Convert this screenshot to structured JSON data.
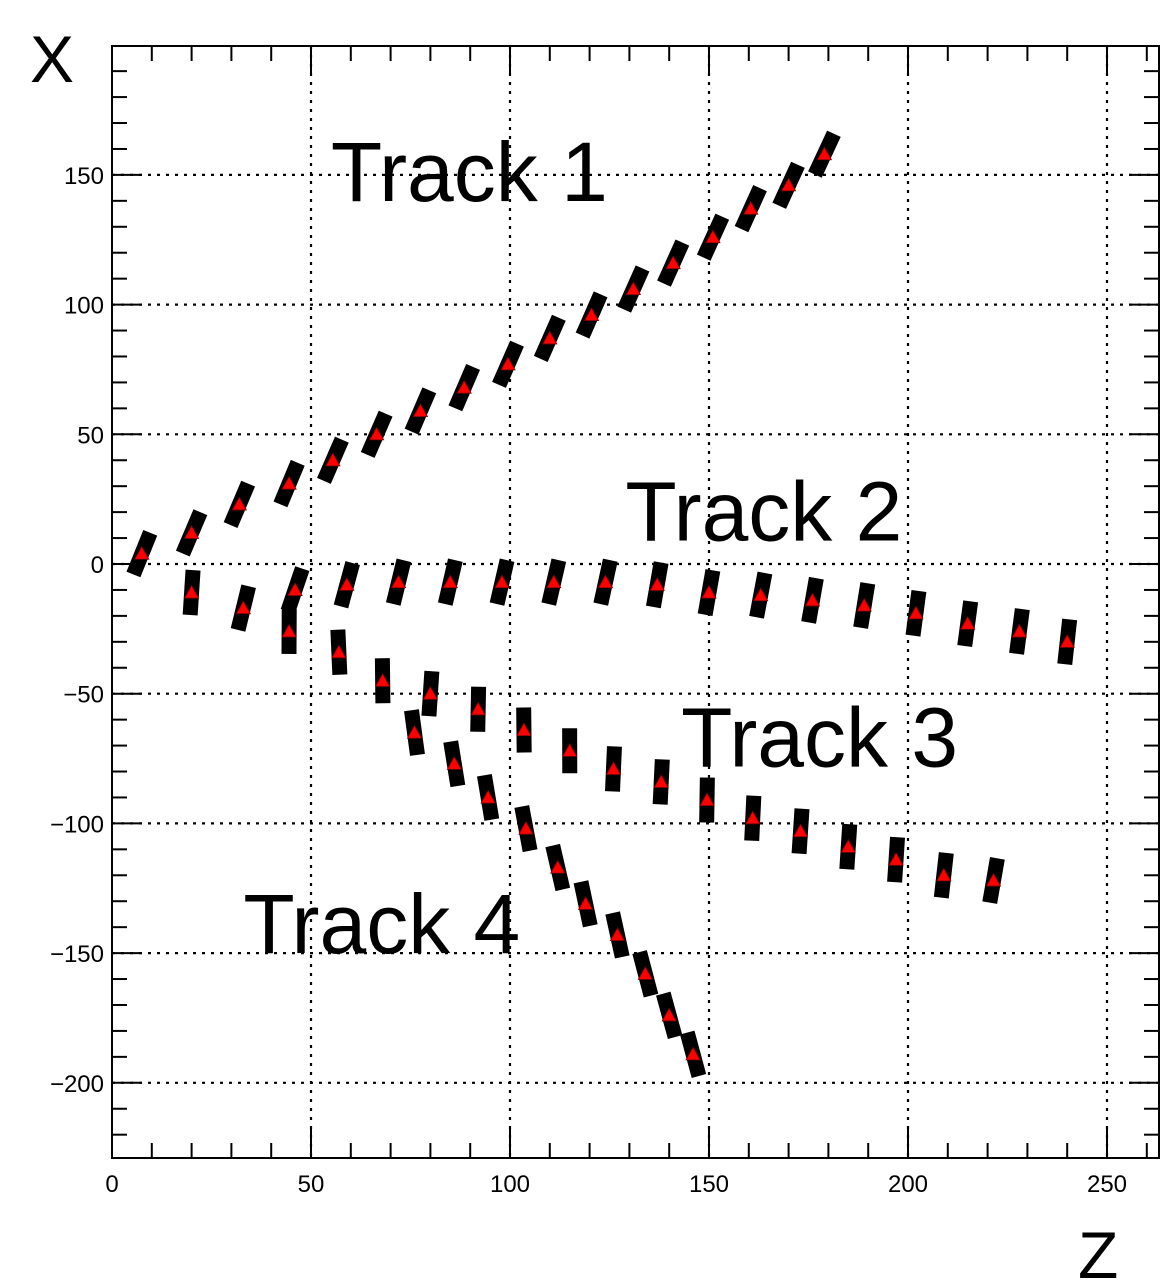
{
  "chart_data": {
    "type": "scatter",
    "xlabel": "Z",
    "ylabel": "X",
    "xlim": [
      0,
      263
    ],
    "ylim": [
      -228,
      198
    ],
    "grid": true,
    "colors": {
      "hit": "#000000",
      "fit": "#ff0000"
    },
    "x_ticks": [
      0,
      50,
      100,
      150,
      200,
      250
    ],
    "x_tick_labels": [
      "0",
      "50",
      "100",
      "150",
      "200",
      "250"
    ],
    "y_ticks": [
      -200,
      -150,
      -100,
      -50,
      0,
      50,
      100,
      150
    ],
    "y_tick_labels": [
      "−200",
      "−150",
      "−100",
      "−50",
      "0",
      "50",
      "100",
      "150"
    ],
    "annotations": [
      {
        "text": "Track 1",
        "x": 55,
        "y": 140
      },
      {
        "text": "Track 2",
        "x": 129,
        "y": 9
      },
      {
        "text": "Track 3",
        "x": 143,
        "y": -78
      },
      {
        "text": "Track 4",
        "x": 33,
        "y": -150
      }
    ],
    "series": [
      {
        "label": "Track 1",
        "x": [
          7.5,
          20,
          32,
          44.5,
          55.5,
          66.5,
          77.5,
          88.5,
          99.5,
          110,
          120.5,
          131,
          141,
          151,
          160.5,
          170,
          179
        ],
        "y": [
          4,
          12,
          23,
          31,
          40,
          50,
          59,
          68,
          77,
          87,
          96,
          106,
          116,
          126,
          137,
          146,
          158
        ]
      },
      {
        "label": "Track 2",
        "x": [
          20,
          33,
          46,
          59,
          72,
          85,
          98,
          111,
          124,
          137,
          150,
          163,
          176,
          189,
          202,
          215,
          228,
          240
        ],
        "y": [
          -11,
          -17,
          -10,
          -8,
          -7,
          -7,
          -7,
          -7,
          -7,
          -8,
          -11,
          -12,
          -14,
          -16,
          -19,
          -23,
          -26,
          -30
        ]
      },
      {
        "label": "Track 3",
        "x": [
          44.5,
          57,
          68,
          80,
          92,
          103.5,
          115,
          126,
          138,
          149.5,
          161,
          173,
          185,
          197,
          209,
          221.5
        ],
        "y": [
          -26,
          -34,
          -45,
          -50,
          -56,
          -64,
          -72,
          -79,
          -84,
          -91,
          -98,
          -103,
          -109,
          -114,
          -120,
          -122
        ]
      },
      {
        "label": "Track 4",
        "x": [
          76,
          86,
          94.5,
          104,
          112,
          119,
          127,
          134,
          140,
          146
        ],
        "y": [
          -65,
          -77,
          -90,
          -102,
          -117,
          -131,
          -143,
          -158,
          -174,
          -189
        ]
      }
    ]
  }
}
